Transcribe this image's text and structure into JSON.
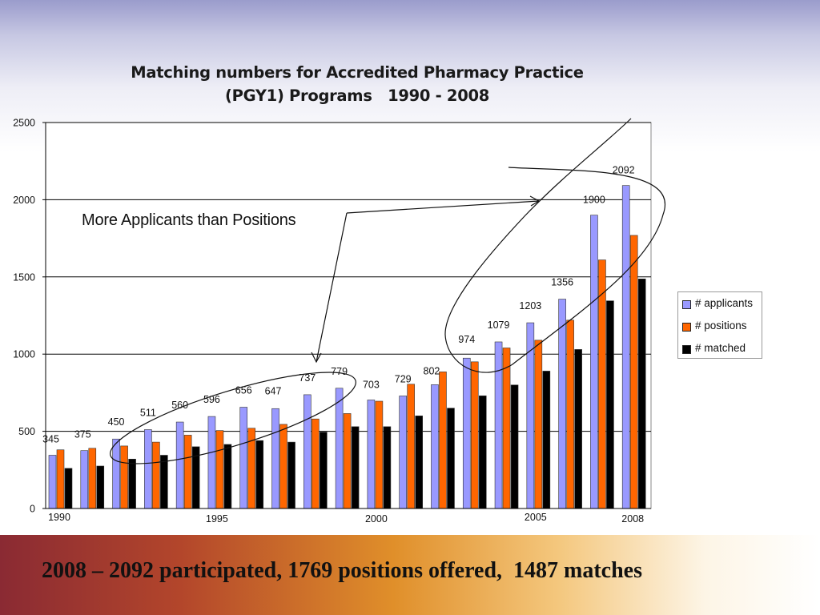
{
  "slide": {
    "banner_text": "2008 – 2092 participated, 1769 positions offered,  1487 matches",
    "annotation_text": "More Applicants than Positions"
  },
  "chart_data": {
    "type": "bar",
    "title_lines": [
      "Matching numbers for Accredited Pharmacy Practice",
      "(PGY1) Programs   1990 - 2008"
    ],
    "categories": [
      "1990",
      "1991",
      "1992",
      "1993",
      "1994",
      "1995",
      "1996",
      "1997",
      "1998",
      "1999",
      "2000",
      "2001",
      "2002",
      "2003",
      "2004",
      "2005",
      "2006",
      "2007",
      "2008"
    ],
    "x_tick_labels": [
      {
        "index": 0,
        "text": "1990"
      },
      {
        "index": 5,
        "text": "1995"
      },
      {
        "index": 10,
        "text": "2000"
      },
      {
        "index": 15,
        "text": "2005"
      },
      {
        "index": 18,
        "text": "2008"
      }
    ],
    "series": [
      {
        "name": "# applicants",
        "color": "#9999ff",
        "values": [
          345,
          375,
          450,
          511,
          560,
          596,
          656,
          647,
          737,
          779,
          703,
          729,
          802,
          974,
          1079,
          1203,
          1356,
          1900,
          2092
        ]
      },
      {
        "name": "# positions",
        "color": "#ff6600",
        "values": [
          380,
          390,
          405,
          430,
          475,
          505,
          520,
          545,
          580,
          615,
          695,
          805,
          885,
          950,
          1040,
          1090,
          1220,
          1610,
          1769
        ]
      },
      {
        "name": "# matched",
        "color": "#000000",
        "values": [
          260,
          275,
          320,
          345,
          400,
          415,
          440,
          430,
          495,
          530,
          530,
          600,
          650,
          730,
          800,
          890,
          1030,
          1345,
          1487
        ]
      }
    ],
    "data_labels": [
      "345",
      "375",
      "450",
      "511",
      "560",
      "596",
      "656",
      "647",
      "737",
      "779",
      "703",
      "729",
      "802",
      "974",
      "1079",
      "1203",
      "1356",
      "1900",
      "2092"
    ],
    "y_ticks": [
      0,
      500,
      1000,
      1500,
      2000,
      2500
    ],
    "ylim": [
      0,
      2500
    ],
    "xlabel": "",
    "ylabel": "",
    "grid": true,
    "legend_position": "right"
  }
}
